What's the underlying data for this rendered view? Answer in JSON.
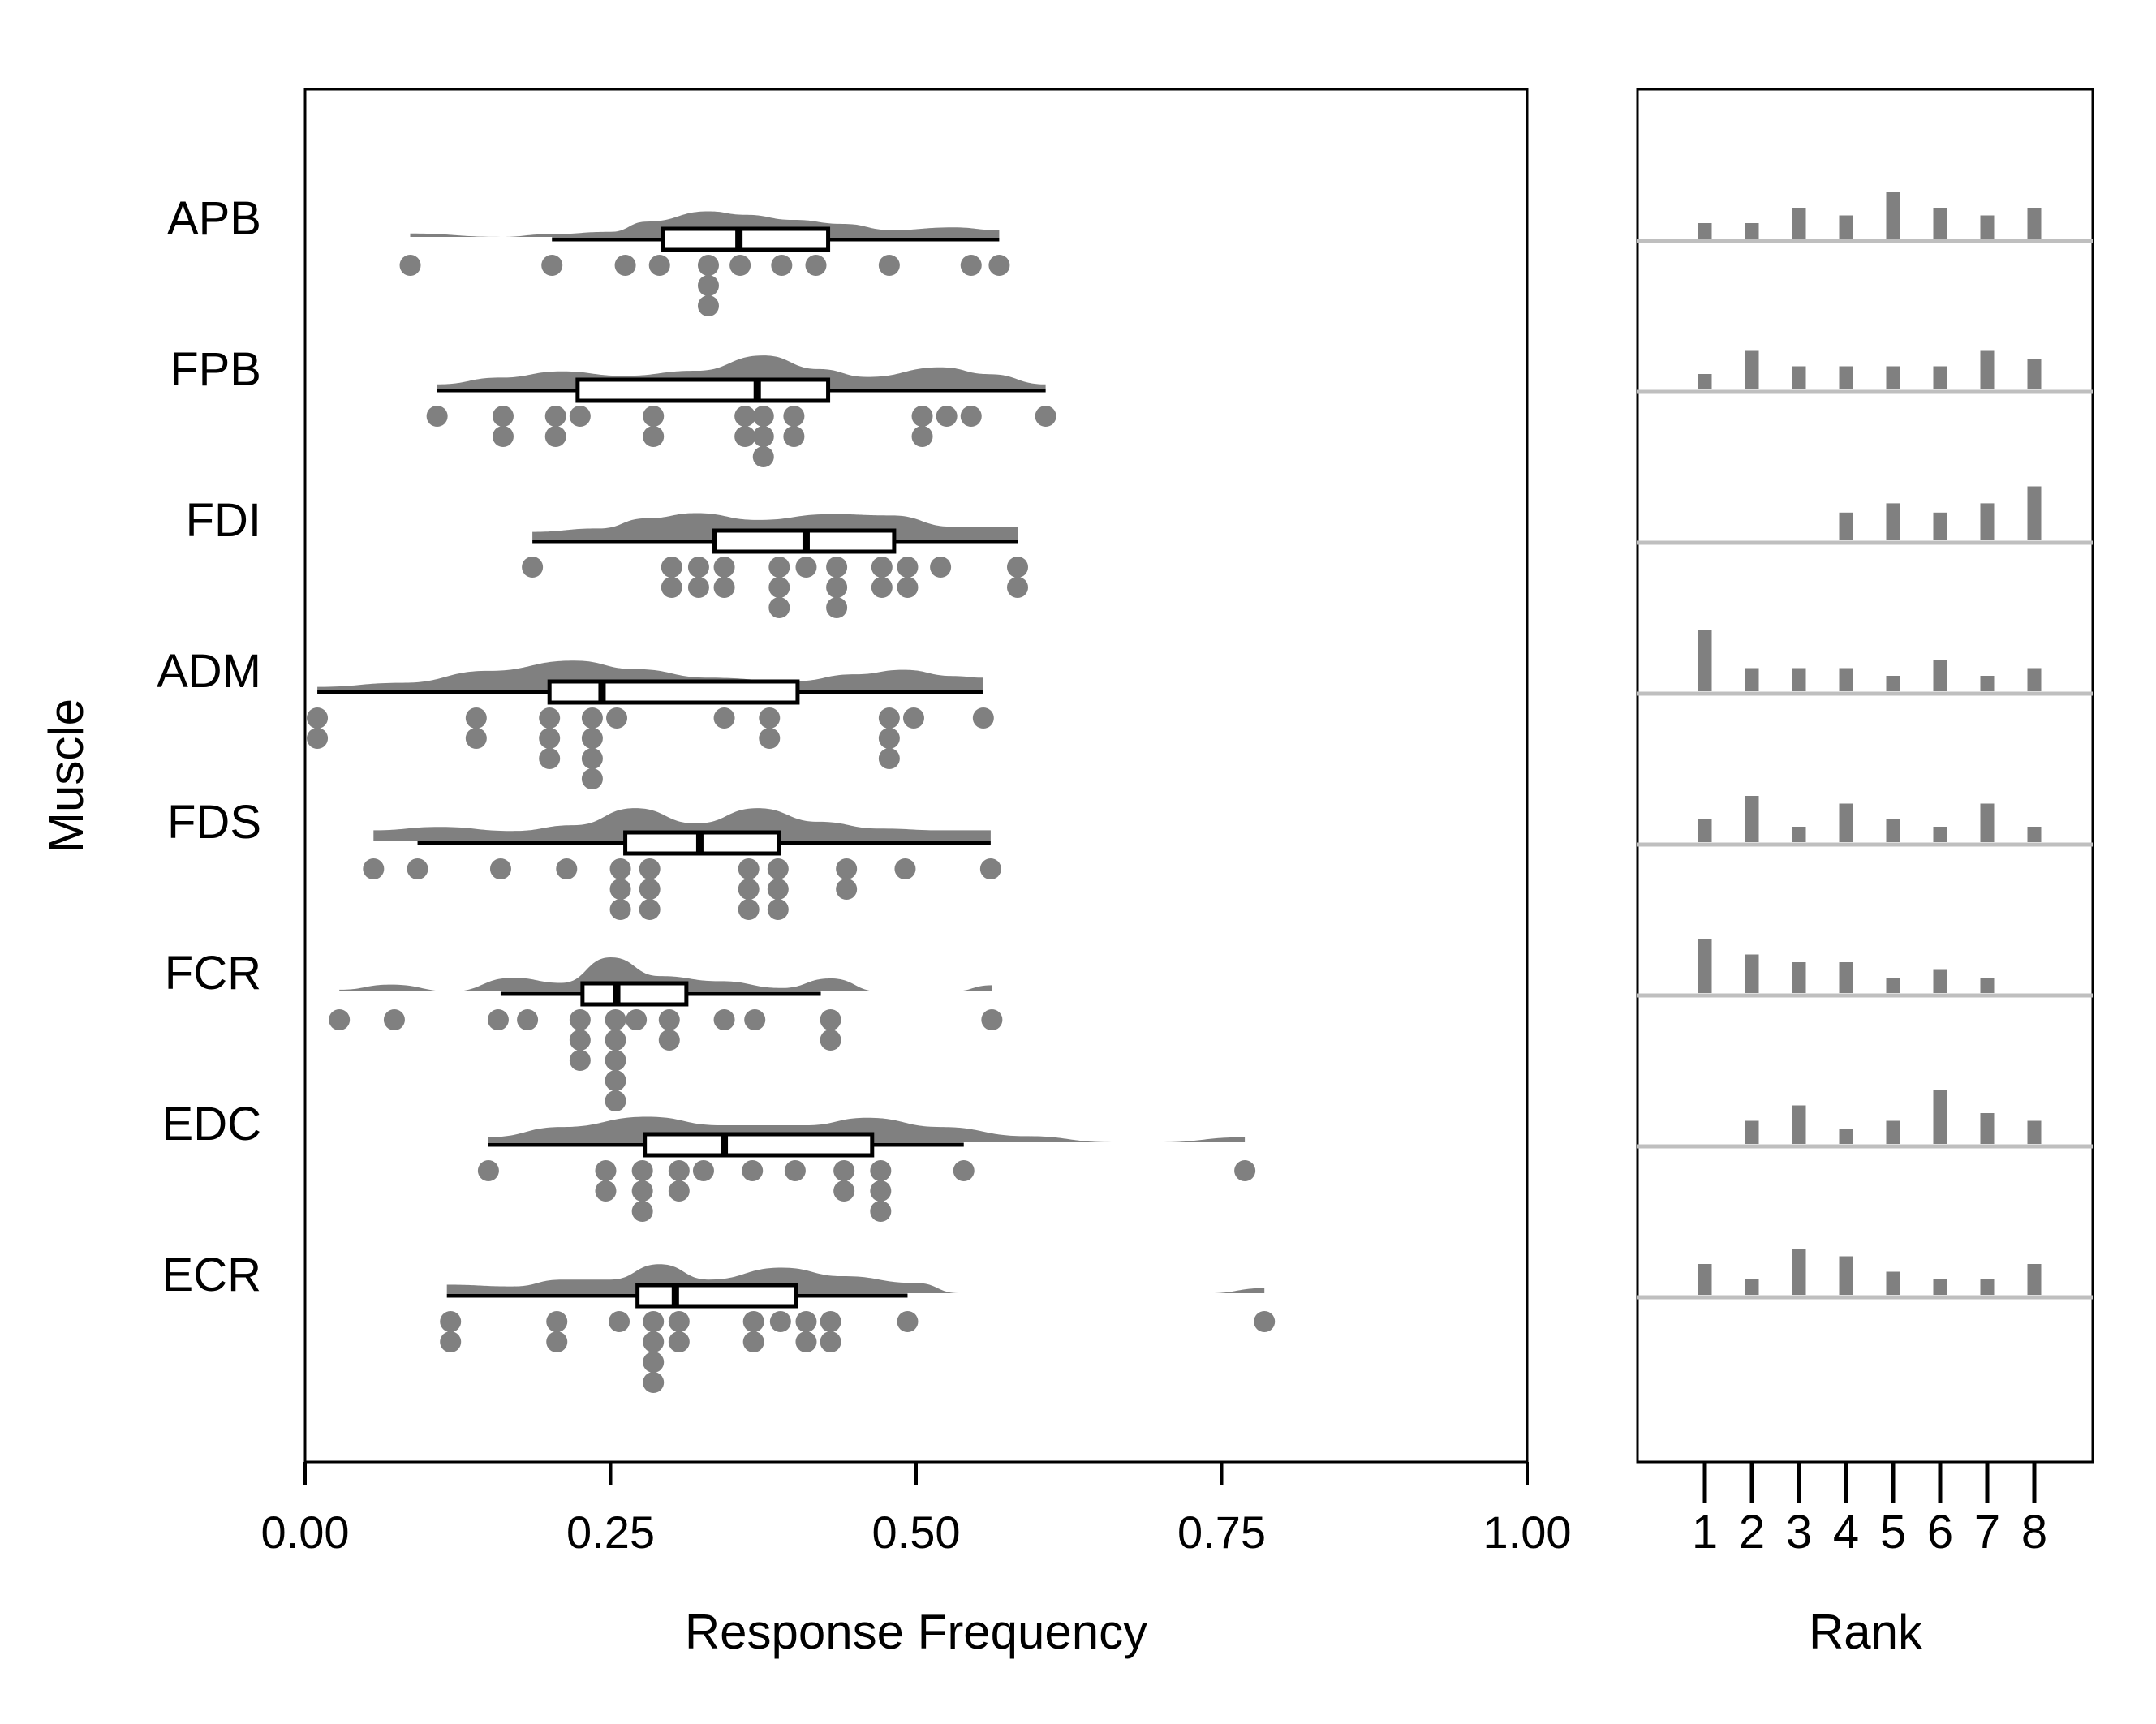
{
  "chart_data": [
    {
      "type": "raincloud",
      "xlabel": "Response Frequency",
      "ylabel": "Muscle",
      "xlim": [
        0,
        1
      ],
      "xticks": [
        "0.00",
        "0.25",
        "0.50",
        "0.75",
        "1.00"
      ],
      "xtick_values": [
        0,
        0.25,
        0.5,
        0.75,
        1.0
      ],
      "colors": {
        "density": "#808080",
        "points": "#808080",
        "box": "#000000"
      },
      "muscles": [
        {
          "name": "APB",
          "points": [
            0.086,
            0.202,
            0.262,
            0.29,
            0.33,
            0.33,
            0.33,
            0.356,
            0.39,
            0.418,
            0.478,
            0.545,
            0.568
          ],
          "box": {
            "whisker_low": 0.202,
            "q1": 0.293,
            "median": 0.355,
            "q3": 0.428,
            "whisker_high": 0.568
          },
          "density": [
            [
              0.086,
              0.1
            ],
            [
              0.16,
              0.0
            ],
            [
              0.2,
              0.08
            ],
            [
              0.25,
              0.15
            ],
            [
              0.28,
              0.45
            ],
            [
              0.33,
              0.75
            ],
            [
              0.36,
              0.65
            ],
            [
              0.4,
              0.5
            ],
            [
              0.44,
              0.38
            ],
            [
              0.48,
              0.2
            ],
            [
              0.53,
              0.28
            ],
            [
              0.568,
              0.2
            ]
          ]
        },
        {
          "name": "FPB",
          "points": [
            0.108,
            0.162,
            0.162,
            0.205,
            0.205,
            0.225,
            0.285,
            0.285,
            0.36,
            0.36,
            0.375,
            0.375,
            0.375,
            0.4,
            0.4,
            0.505,
            0.505,
            0.525,
            0.545,
            0.606
          ],
          "box": {
            "whisker_low": 0.108,
            "q1": 0.223,
            "median": 0.37,
            "q3": 0.428,
            "whisker_high": 0.606
          },
          "density": [
            [
              0.108,
              0.1
            ],
            [
              0.16,
              0.3
            ],
            [
              0.21,
              0.48
            ],
            [
              0.26,
              0.35
            ],
            [
              0.32,
              0.5
            ],
            [
              0.375,
              0.95
            ],
            [
              0.42,
              0.55
            ],
            [
              0.46,
              0.32
            ],
            [
              0.52,
              0.6
            ],
            [
              0.56,
              0.4
            ],
            [
              0.606,
              0.1
            ]
          ]
        },
        {
          "name": "FDI",
          "points": [
            0.186,
            0.3,
            0.3,
            0.322,
            0.322,
            0.343,
            0.343,
            0.388,
            0.388,
            0.388,
            0.41,
            0.435,
            0.435,
            0.435,
            0.472,
            0.472,
            0.493,
            0.493,
            0.52,
            0.583,
            0.583
          ],
          "box": {
            "whisker_low": 0.186,
            "q1": 0.335,
            "median": 0.41,
            "q3": 0.482,
            "whisker_high": 0.583
          },
          "density": [
            [
              0.186,
              0.2
            ],
            [
              0.24,
              0.3
            ],
            [
              0.28,
              0.6
            ],
            [
              0.32,
              0.75
            ],
            [
              0.37,
              0.55
            ],
            [
              0.43,
              0.72
            ],
            [
              0.48,
              0.68
            ],
            [
              0.53,
              0.35
            ],
            [
              0.583,
              0.35
            ]
          ]
        },
        {
          "name": "ADM",
          "points": [
            0.01,
            0.01,
            0.14,
            0.14,
            0.2,
            0.2,
            0.2,
            0.235,
            0.235,
            0.235,
            0.235,
            0.255,
            0.343,
            0.38,
            0.38,
            0.478,
            0.478,
            0.478,
            0.498,
            0.555
          ],
          "box": {
            "whisker_low": 0.01,
            "q1": 0.2,
            "median": 0.243,
            "q3": 0.403,
            "whisker_high": 0.555
          },
          "density": [
            [
              0.01,
              0.08
            ],
            [
              0.08,
              0.2
            ],
            [
              0.15,
              0.55
            ],
            [
              0.22,
              0.85
            ],
            [
              0.27,
              0.6
            ],
            [
              0.33,
              0.35
            ],
            [
              0.4,
              0.25
            ],
            [
              0.45,
              0.45
            ],
            [
              0.49,
              0.58
            ],
            [
              0.53,
              0.4
            ],
            [
              0.555,
              0.35
            ]
          ]
        },
        {
          "name": "FDS",
          "points": [
            0.056,
            0.092,
            0.16,
            0.214,
            0.258,
            0.258,
            0.258,
            0.282,
            0.282,
            0.282,
            0.363,
            0.363,
            0.363,
            0.387,
            0.387,
            0.387,
            0.443,
            0.443,
            0.491,
            0.561
          ],
          "box": {
            "whisker_low": 0.092,
            "q1": 0.262,
            "median": 0.323,
            "q3": 0.388,
            "whisker_high": 0.561
          },
          "density": [
            [
              0.056,
              0.3
            ],
            [
              0.11,
              0.4
            ],
            [
              0.17,
              0.28
            ],
            [
              0.22,
              0.45
            ],
            [
              0.27,
              0.95
            ],
            [
              0.32,
              0.5
            ],
            [
              0.37,
              0.95
            ],
            [
              0.42,
              0.55
            ],
            [
              0.47,
              0.35
            ],
            [
              0.52,
              0.3
            ],
            [
              0.561,
              0.3
            ]
          ]
        },
        {
          "name": "FCR",
          "points": [
            0.028,
            0.073,
            0.158,
            0.182,
            0.225,
            0.225,
            0.225,
            0.254,
            0.254,
            0.254,
            0.254,
            0.254,
            0.271,
            0.298,
            0.298,
            0.343,
            0.368,
            0.43,
            0.43,
            0.562
          ],
          "box": {
            "whisker_low": 0.16,
            "q1": 0.227,
            "median": 0.255,
            "q3": 0.312,
            "whisker_high": 0.422
          },
          "density": [
            [
              0.028,
              0.05
            ],
            [
              0.07,
              0.2
            ],
            [
              0.12,
              0.0
            ],
            [
              0.17,
              0.4
            ],
            [
              0.21,
              0.25
            ],
            [
              0.25,
              1.0
            ],
            [
              0.29,
              0.45
            ],
            [
              0.34,
              0.3
            ],
            [
              0.39,
              0.1
            ],
            [
              0.43,
              0.38
            ],
            [
              0.47,
              0.0
            ],
            [
              0.53,
              0.0
            ],
            [
              0.562,
              0.18
            ]
          ]
        },
        {
          "name": "EDC",
          "points": [
            0.15,
            0.246,
            0.246,
            0.276,
            0.276,
            0.276,
            0.306,
            0.306,
            0.326,
            0.366,
            0.401,
            0.441,
            0.441,
            0.471,
            0.471,
            0.471,
            0.539,
            0.769
          ],
          "box": {
            "whisker_low": 0.15,
            "q1": 0.278,
            "median": 0.343,
            "q3": 0.464,
            "whisker_high": 0.539
          },
          "density": [
            [
              0.15,
              0.15
            ],
            [
              0.21,
              0.45
            ],
            [
              0.28,
              0.75
            ],
            [
              0.34,
              0.5
            ],
            [
              0.41,
              0.5
            ],
            [
              0.46,
              0.72
            ],
            [
              0.52,
              0.45
            ],
            [
              0.59,
              0.18
            ],
            [
              0.66,
              0.0
            ],
            [
              0.7,
              0.0
            ],
            [
              0.769,
              0.15
            ]
          ]
        },
        {
          "name": "ECR",
          "points": [
            0.119,
            0.119,
            0.206,
            0.206,
            0.257,
            0.285,
            0.285,
            0.285,
            0.285,
            0.306,
            0.306,
            0.367,
            0.367,
            0.389,
            0.41,
            0.41,
            0.43,
            0.43,
            0.493,
            0.785
          ],
          "box": {
            "whisker_low": 0.116,
            "q1": 0.272,
            "median": 0.303,
            "q3": 0.402,
            "whisker_high": 0.493
          },
          "density": [
            [
              0.116,
              0.25
            ],
            [
              0.17,
              0.2
            ],
            [
              0.21,
              0.4
            ],
            [
              0.25,
              0.4
            ],
            [
              0.29,
              0.85
            ],
            [
              0.33,
              0.4
            ],
            [
              0.39,
              0.75
            ],
            [
              0.44,
              0.5
            ],
            [
              0.5,
              0.3
            ],
            [
              0.535,
              0.0
            ],
            [
              0.74,
              0.0
            ],
            [
              0.785,
              0.15
            ]
          ]
        }
      ]
    },
    {
      "type": "bar",
      "xlabel": "Rank",
      "categories": [
        "1",
        "2",
        "3",
        "4",
        "5",
        "6",
        "7",
        "8"
      ],
      "color": "#808080",
      "baseline_color": "#bfbfbf",
      "series": [
        {
          "name": "APB",
          "values": [
            1,
            1,
            2,
            1.5,
            3,
            2,
            1.5,
            2
          ]
        },
        {
          "name": "FPB",
          "values": [
            1,
            2.5,
            1.5,
            1.5,
            1.5,
            1.5,
            2.5,
            2
          ]
        },
        {
          "name": "FDI",
          "values": [
            0,
            0,
            0,
            1.8,
            2.4,
            1.8,
            2.4,
            3.5
          ]
        },
        {
          "name": "ADM",
          "values": [
            4,
            1.5,
            1.5,
            1.5,
            1,
            2,
            1,
            1.5
          ]
        },
        {
          "name": "FDS",
          "values": [
            1.5,
            3,
            1,
            2.5,
            1.5,
            1,
            2.5,
            1
          ]
        },
        {
          "name": "FCR",
          "values": [
            3.5,
            2.5,
            2,
            2,
            1,
            1.5,
            1,
            0
          ]
        },
        {
          "name": "EDC",
          "values": [
            0,
            1.5,
            2.5,
            1,
            1.5,
            3.5,
            2,
            1.5
          ]
        },
        {
          "name": "ECR",
          "values": [
            2,
            1,
            3,
            2.5,
            1.5,
            1,
            1,
            2
          ]
        }
      ]
    }
  ]
}
